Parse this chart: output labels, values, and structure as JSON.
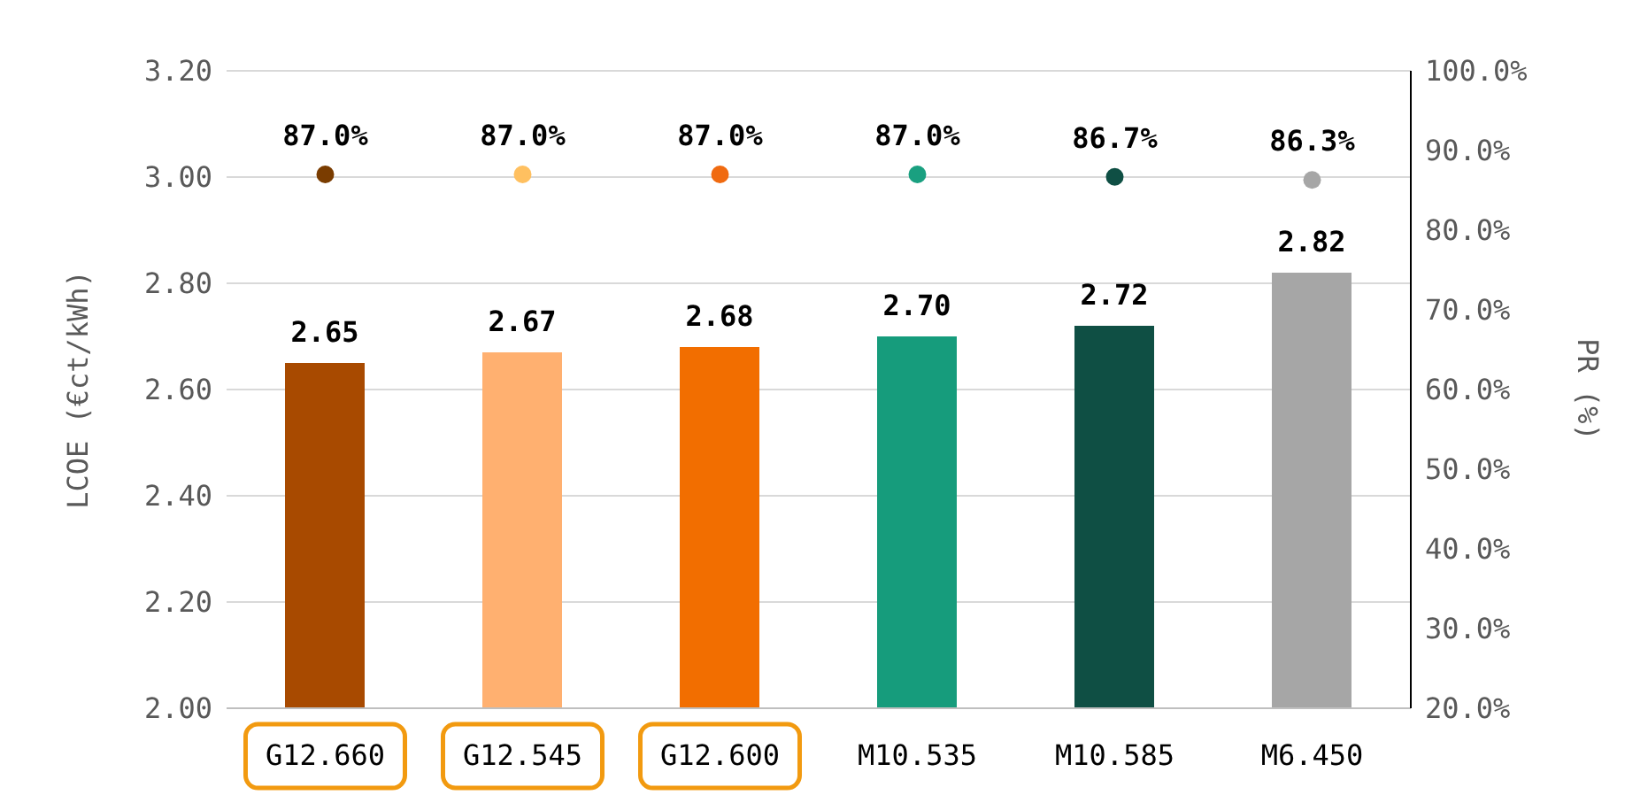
{
  "chart_data": {
    "type": "bar",
    "ylabel": "LCOE (€ct/kWh)",
    "y2label": "PR (%)",
    "categories": [
      "G12.660",
      "G12.545",
      "G12.600",
      "M10.535",
      "M10.585",
      "M6.450"
    ],
    "series": [
      {
        "values": [
          2.65,
          2.67,
          2.68,
          2.7,
          2.72,
          2.82
        ],
        "colors": [
          "#a84a00",
          "#ffb070",
          "#f26e00",
          "#169c7c",
          "#0f4f44",
          "#a6a6a6"
        ],
        "value_labels": [
          "2.65",
          "2.67",
          "2.68",
          "2.70",
          "2.72",
          "2.82"
        ]
      },
      {
        "type": "scatter",
        "axis": "y2",
        "values": [
          87.0,
          87.0,
          87.0,
          87.0,
          86.7,
          86.3
        ],
        "colors": [
          "#7a3c00",
          "#ffc060",
          "#f06a10",
          "#1aa080",
          "#0f4f44",
          "#a6a6a6"
        ],
        "value_labels": [
          "87.0%",
          "87.0%",
          "87.0%",
          "87.0%",
          "86.7%",
          "86.3%"
        ]
      }
    ],
    "ylim": [
      2.0,
      3.2
    ],
    "yticks": [
      {
        "value": 2.0,
        "label": "2.00"
      },
      {
        "value": 2.2,
        "label": "2.20"
      },
      {
        "value": 2.4,
        "label": "2.40"
      },
      {
        "value": 2.6,
        "label": "2.60"
      },
      {
        "value": 2.8,
        "label": "2.80"
      },
      {
        "value": 3.0,
        "label": "3.00"
      },
      {
        "value": 3.2,
        "label": "3.20"
      }
    ],
    "y2lim": [
      20,
      100
    ],
    "y2ticks": [
      {
        "value": 20,
        "label": "20.0%"
      },
      {
        "value": 30,
        "label": "30.0%"
      },
      {
        "value": 40,
        "label": "40.0%"
      },
      {
        "value": 50,
        "label": "50.0%"
      },
      {
        "value": 60,
        "label": "60.0%"
      },
      {
        "value": 70,
        "label": "70.0%"
      },
      {
        "value": 80,
        "label": "80.0%"
      },
      {
        "value": 90,
        "label": "90.0%"
      },
      {
        "value": 100,
        "label": "100.0%"
      }
    ],
    "grid": "y",
    "marker": "circle",
    "legend": false
  }
}
